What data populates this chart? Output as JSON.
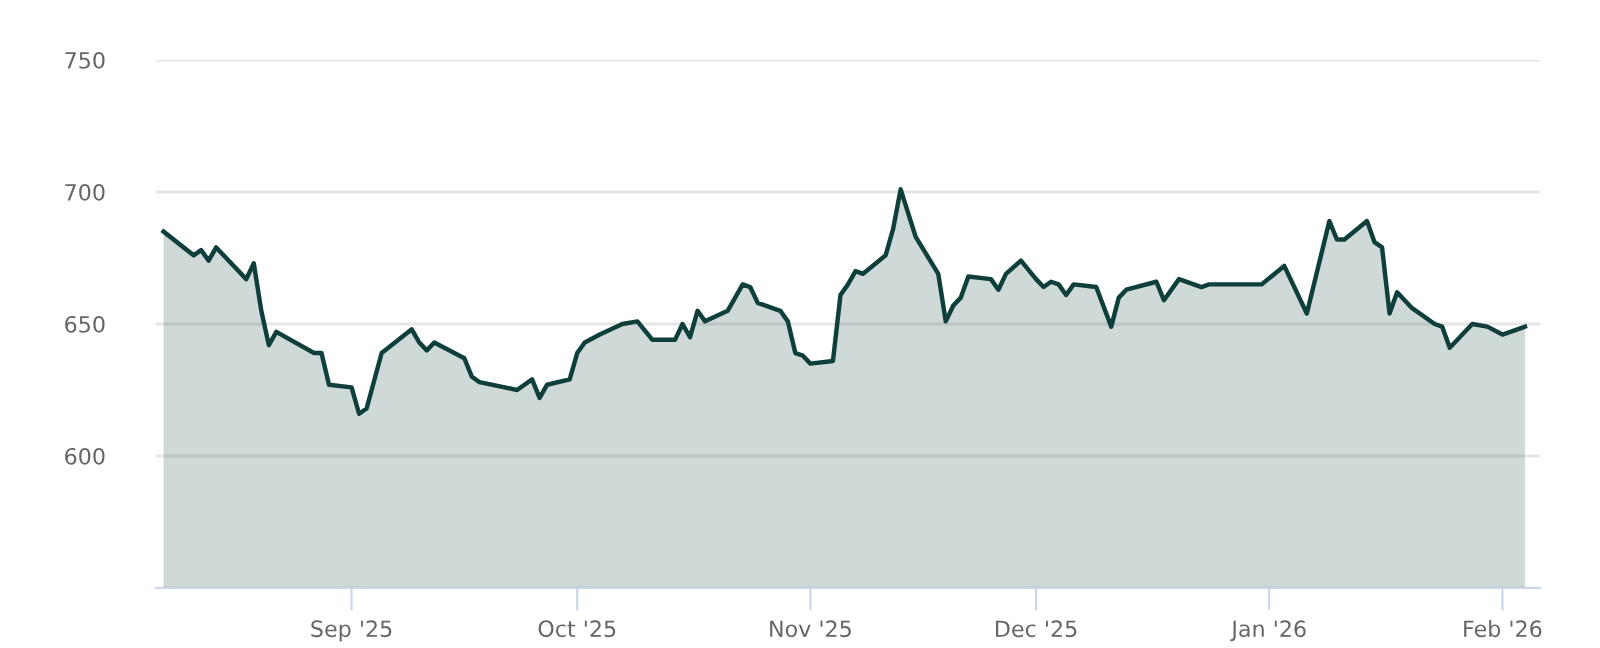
{
  "chart_data": {
    "type": "area",
    "x": [
      "2025-08-07",
      "2025-08-11",
      "2025-08-12",
      "2025-08-13",
      "2025-08-14",
      "2025-08-18",
      "2025-08-19",
      "2025-08-20",
      "2025-08-21",
      "2025-08-22",
      "2025-08-27",
      "2025-08-28",
      "2025-08-29",
      "2025-09-01",
      "2025-09-02",
      "2025-09-03",
      "2025-09-05",
      "2025-09-09",
      "2025-09-10",
      "2025-09-11",
      "2025-09-12",
      "2025-09-16",
      "2025-09-17",
      "2025-09-18",
      "2025-09-23",
      "2025-09-25",
      "2025-09-26",
      "2025-09-27",
      "2025-09-30",
      "2025-10-01",
      "2025-10-02",
      "2025-10-04",
      "2025-10-07",
      "2025-10-09",
      "2025-10-11",
      "2025-10-14",
      "2025-10-15",
      "2025-10-16",
      "2025-10-17",
      "2025-10-18",
      "2025-10-21",
      "2025-10-23",
      "2025-10-24",
      "2025-10-25",
      "2025-10-28",
      "2025-10-29",
      "2025-10-30",
      "2025-10-31",
      "2025-11-01",
      "2025-11-04",
      "2025-11-05",
      "2025-11-06",
      "2025-11-07",
      "2025-11-08",
      "2025-11-11",
      "2025-11-12",
      "2025-11-13",
      "2025-11-15",
      "2025-11-18",
      "2025-11-19",
      "2025-11-20",
      "2025-11-21",
      "2025-11-22",
      "2025-11-25",
      "2025-11-26",
      "2025-11-27",
      "2025-11-29",
      "2025-12-01",
      "2025-12-02",
      "2025-12-03",
      "2025-12-04",
      "2025-12-05",
      "2025-12-06",
      "2025-12-09",
      "2025-12-11",
      "2025-12-12",
      "2025-12-13",
      "2025-12-17",
      "2025-12-18",
      "2025-12-20",
      "2025-12-23",
      "2025-12-24",
      "2025-12-31",
      "2026-01-03",
      "2026-01-06",
      "2026-01-09",
      "2026-01-10",
      "2026-01-11",
      "2026-01-14",
      "2026-01-15",
      "2026-01-16",
      "2026-01-17",
      "2026-01-18",
      "2026-01-20",
      "2026-01-23",
      "2026-01-24",
      "2026-01-25",
      "2026-01-28",
      "2026-01-30",
      "2026-02-01",
      "2026-02-04"
    ],
    "series": [
      {
        "color": "#0e3f3b",
        "values": [
          685,
          676,
          678,
          674,
          679,
          667,
          673,
          655,
          642,
          647,
          639,
          639,
          627,
          626,
          616,
          618,
          639,
          648,
          643,
          640,
          643,
          637,
          630,
          628,
          625,
          629,
          622,
          627,
          629,
          639,
          643,
          646,
          650,
          651,
          644,
          644,
          650,
          645,
          655,
          651,
          655,
          665,
          664,
          658,
          655,
          651,
          639,
          638,
          635,
          636,
          661,
          665,
          670,
          669,
          676,
          686,
          701,
          683,
          669,
          651,
          657,
          660,
          668,
          667,
          663,
          669,
          674,
          667,
          664,
          666,
          665,
          661,
          665,
          664,
          649,
          660,
          663,
          666,
          659,
          667,
          664,
          665,
          665,
          672,
          654,
          689,
          682,
          682,
          689,
          681,
          679,
          654,
          662,
          656,
          650,
          649,
          641,
          650,
          649,
          646,
          649
        ]
      }
    ],
    "xlim": [
      "2025-08-06",
      "2026-02-06"
    ],
    "xticks": [
      {
        "value": "2025-09-01",
        "label": "Sep '25"
      },
      {
        "value": "2025-10-01",
        "label": "Oct '25"
      },
      {
        "value": "2025-11-01",
        "label": "Nov '25"
      },
      {
        "value": "2025-12-01",
        "label": "Dec '25"
      },
      {
        "value": "2026-01-01",
        "label": "Jan '26"
      },
      {
        "value": "2026-02-01",
        "label": "Feb '26"
      }
    ],
    "ylim": [
      550,
      750
    ],
    "yticks": [
      {
        "value": 550,
        "label": null
      },
      600,
      650,
      700,
      750
    ],
    "grid": "y",
    "legend": false
  }
}
